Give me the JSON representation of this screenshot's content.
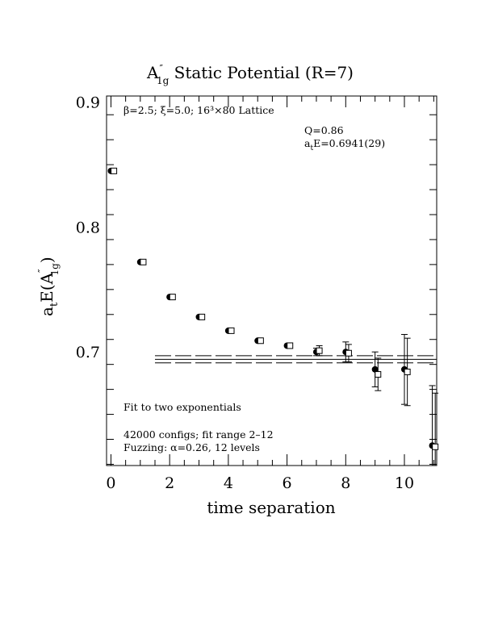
{
  "chart_data": {
    "type": "scatter",
    "title": "A″ Static Potential (R=7)",
    "title_main": "A",
    "title_prime": "″",
    "title_sub": "1g",
    "title_rest": " Static Potential (R=7)",
    "xlabel": "time separation",
    "ylabel_pre": "a",
    "ylabel_sub_t": "t",
    "ylabel_mid": "E(A",
    "ylabel_prime": "″",
    "ylabel_sub_1g": "1g",
    "ylabel_post": ")",
    "xlim": [
      -0.15,
      11.1
    ],
    "ylim": [
      0.609,
      0.905
    ],
    "x_ticks": [
      0,
      2,
      4,
      6,
      8,
      10
    ],
    "x_tick_labels": [
      "0",
      "2",
      "4",
      "6",
      "8",
      "10"
    ],
    "y_ticks": [
      0.7,
      0.8,
      0.9
    ],
    "y_tick_labels": [
      "0.7",
      "0.8",
      "0.9"
    ],
    "annotations": {
      "lattice": "β=2.5; ξ=5.0; 16³×80 Lattice",
      "q": "Q=0.86",
      "energy_pre": "a",
      "energy_sub": "t",
      "energy_post": "E=0.6941(29)",
      "fit": "Fit to two exponentials",
      "configs": "42000 configs; fit range 2–12",
      "fuzzing": "Fuzzing: α=0.26, 12 levels"
    },
    "fit": {
      "x_range": [
        1.5,
        11.1
      ],
      "value": 0.6941,
      "error": 0.0029
    },
    "series": [
      {
        "marker": "filled-circle",
        "points": [
          {
            "x": 0,
            "y": 0.845,
            "err": 0.0
          },
          {
            "x": 1,
            "y": 0.772,
            "err": 0.0
          },
          {
            "x": 2,
            "y": 0.744,
            "err": 0.0
          },
          {
            "x": 3,
            "y": 0.728,
            "err": 0.0
          },
          {
            "x": 4,
            "y": 0.717,
            "err": 0.0
          },
          {
            "x": 5,
            "y": 0.709,
            "err": 0.0
          },
          {
            "x": 6,
            "y": 0.705,
            "err": 0.0
          },
          {
            "x": 7,
            "y": 0.7,
            "err": 0.003
          },
          {
            "x": 8,
            "y": 0.7,
            "err": 0.008
          },
          {
            "x": 9,
            "y": 0.686,
            "err": 0.014
          },
          {
            "x": 10,
            "y": 0.686,
            "err": 0.028
          },
          {
            "x": 10.95,
            "y": 0.625,
            "err": 0.048
          }
        ]
      },
      {
        "marker": "open-square",
        "points": [
          {
            "x": 0.1,
            "y": 0.845,
            "err": 0.0
          },
          {
            "x": 1.1,
            "y": 0.772,
            "err": 0.0
          },
          {
            "x": 2.1,
            "y": 0.744,
            "err": 0.0
          },
          {
            "x": 3.1,
            "y": 0.728,
            "err": 0.0
          },
          {
            "x": 4.1,
            "y": 0.717,
            "err": 0.0
          },
          {
            "x": 5.1,
            "y": 0.709,
            "err": 0.0
          },
          {
            "x": 6.1,
            "y": 0.705,
            "err": 0.0
          },
          {
            "x": 7.1,
            "y": 0.701,
            "err": 0.004
          },
          {
            "x": 8.1,
            "y": 0.699,
            "err": 0.007
          },
          {
            "x": 9.1,
            "y": 0.682,
            "err": 0.013
          },
          {
            "x": 10.1,
            "y": 0.684,
            "err": 0.027
          },
          {
            "x": 11.05,
            "y": 0.624,
            "err": 0.043
          }
        ]
      }
    ]
  }
}
